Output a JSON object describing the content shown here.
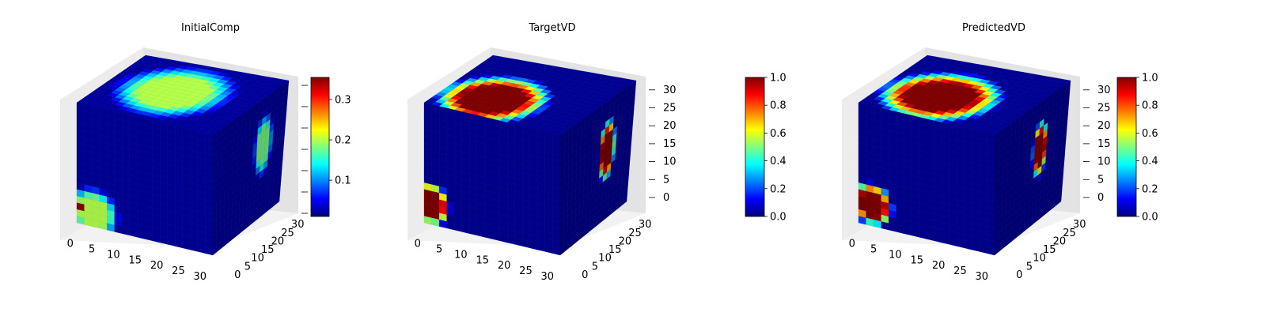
{
  "colormap": "jet",
  "colors": {
    "jet": [
      "#00007f",
      "#0000ff",
      "#007fff",
      "#00ffff",
      "#7fff7f",
      "#ffff00",
      "#ff7f00",
      "#ff0000",
      "#7f0000"
    ],
    "pane_left": "#ececec",
    "pane_right": "#e3e3e3",
    "pane_floor": "#f2f2f2",
    "grid": "#ffffff"
  },
  "chart_data": [
    {
      "type": "heatmap",
      "subtype": "3d-voxel-cube",
      "title": "InitialComp",
      "grid_size": 32,
      "x_ticks": [
        "0",
        "5",
        "10",
        "15",
        "20",
        "25",
        "30"
      ],
      "y_ticks": [
        "0",
        "5",
        "10",
        "15",
        "20",
        "25",
        "30"
      ],
      "z_ticks": [],
      "xlim": [
        0,
        32
      ],
      "ylim": [
        0,
        32
      ],
      "zlim": [
        0,
        32
      ],
      "colorbar": {
        "ticks": [
          "0.1",
          "0.2",
          "0.3"
        ],
        "tick_values": [
          0.1,
          0.2,
          0.3
        ],
        "range": [
          0.01,
          0.355
        ]
      },
      "blobs": [
        {
          "face": "top",
          "u": 0.45,
          "v": 0.5,
          "ru": 0.32,
          "rv": 0.38,
          "value": 0.2
        },
        {
          "face": "front",
          "u": 0.12,
          "v": 0.12,
          "ru": 0.16,
          "rv": 0.17,
          "value": 0.2
        },
        {
          "face": "front",
          "u": 0.01,
          "v": 0.13,
          "ru": 0.03,
          "rv": 0.04,
          "value": 0.35
        },
        {
          "face": "side",
          "u": 0.7,
          "v": 0.6,
          "ru": 0.11,
          "rv": 0.22,
          "value": 0.18
        }
      ],
      "background_value": 0.02
    },
    {
      "type": "heatmap",
      "subtype": "3d-voxel-cube",
      "title": "TargetVD",
      "grid_size": 32,
      "x_ticks": [
        "0",
        "5",
        "10",
        "15",
        "20",
        "25",
        "30"
      ],
      "y_ticks": [
        "0",
        "5",
        "10",
        "15",
        "20",
        "25",
        "30"
      ],
      "z_ticks": [
        "0",
        "5",
        "10",
        "15",
        "20",
        "25",
        "30"
      ],
      "xlim": [
        0,
        32
      ],
      "ylim": [
        0,
        32
      ],
      "zlim": [
        0,
        32
      ],
      "colorbar": {
        "ticks": [
          "0.0",
          "0.2",
          "0.4",
          "0.6",
          "0.8",
          "1.0"
        ],
        "tick_values": [
          0,
          0.2,
          0.4,
          0.6,
          0.8,
          1.0
        ],
        "range": [
          0,
          1
        ]
      },
      "blobs": [
        {
          "face": "top",
          "u": 0.35,
          "v": 0.7,
          "ru": 0.3,
          "rv": 0.35,
          "value": 1.0
        },
        {
          "face": "front",
          "u": 0.05,
          "v": 0.17,
          "ru": 0.12,
          "rv": 0.15,
          "value": 1.0
        },
        {
          "face": "side",
          "u": 0.65,
          "v": 0.58,
          "ru": 0.1,
          "rv": 0.22,
          "value": 1.0
        }
      ],
      "background_value": 0.02
    },
    {
      "type": "heatmap",
      "subtype": "3d-voxel-cube",
      "title": "PredictedVD",
      "grid_size": 32,
      "x_ticks": [
        "0",
        "5",
        "10",
        "15",
        "20",
        "25",
        "30"
      ],
      "y_ticks": [
        "0",
        "5",
        "10",
        "15",
        "20",
        "25",
        "30"
      ],
      "z_ticks": [
        "0",
        "5",
        "10",
        "15",
        "20",
        "25",
        "30"
      ],
      "xlim": [
        0,
        32
      ],
      "ylim": [
        0,
        32
      ],
      "zlim": [
        0,
        32
      ],
      "colorbar": {
        "ticks": [
          "0.0",
          "0.2",
          "0.4",
          "0.6",
          "0.8",
          "1.0"
        ],
        "tick_values": [
          0,
          0.2,
          0.4,
          0.6,
          0.8,
          1.0
        ],
        "range": [
          0,
          1
        ]
      },
      "blobs": [
        {
          "face": "top",
          "u": 0.4,
          "v": 0.62,
          "ru": 0.33,
          "rv": 0.36,
          "value": 1.0
        },
        {
          "face": "front",
          "u": 0.1,
          "v": 0.18,
          "ru": 0.13,
          "rv": 0.15,
          "value": 1.0
        },
        {
          "face": "side",
          "u": 0.63,
          "v": 0.6,
          "ru": 0.09,
          "rv": 0.2,
          "value": 1.0
        }
      ],
      "background_value": 0.02
    }
  ]
}
